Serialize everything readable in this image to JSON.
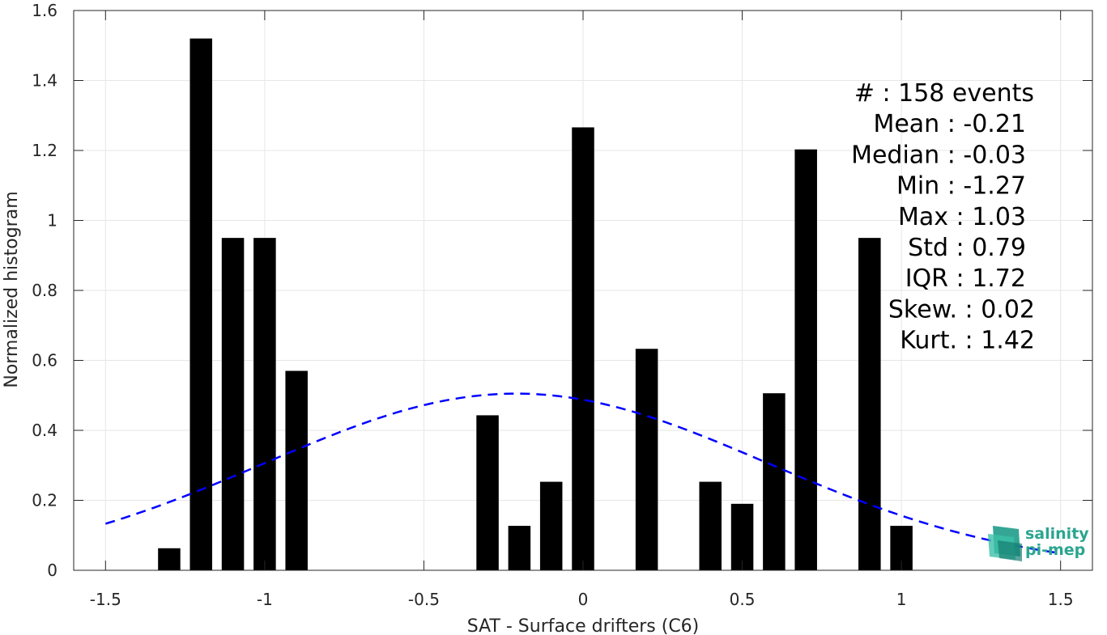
{
  "chart_data": {
    "type": "bar",
    "xlabel": "SAT - Surface drifters (C6)",
    "ylabel": "Normalized histogram",
    "xlim": [
      -1.6,
      1.6
    ],
    "ylim": [
      0,
      1.6
    ],
    "xticks": [
      -1.5,
      -1,
      -0.5,
      0,
      0.5,
      1,
      1.5
    ],
    "xtick_labels": [
      "-1.5",
      "-1",
      "-0.5",
      "0",
      "0.5",
      "1",
      "1.5"
    ],
    "yticks": [
      0,
      0.2,
      0.4,
      0.6,
      0.8,
      1,
      1.2,
      1.4,
      1.6
    ],
    "ytick_labels": [
      "0",
      "0.2",
      "0.4",
      "0.6",
      "0.8",
      "1",
      "1.2",
      "1.4",
      "1.6"
    ],
    "grid": true,
    "bar_color": "#000000",
    "bar_width": 0.07,
    "bars": [
      {
        "x": -1.3,
        "y": 0.063
      },
      {
        "x": -1.2,
        "y": 1.52
      },
      {
        "x": -1.1,
        "y": 0.95
      },
      {
        "x": -1.0,
        "y": 0.95
      },
      {
        "x": -0.9,
        "y": 0.57
      },
      {
        "x": -0.3,
        "y": 0.443
      },
      {
        "x": -0.2,
        "y": 0.127
      },
      {
        "x": -0.1,
        "y": 0.253
      },
      {
        "x": 0.0,
        "y": 1.266
      },
      {
        "x": 0.2,
        "y": 0.633
      },
      {
        "x": 0.4,
        "y": 0.253
      },
      {
        "x": 0.5,
        "y": 0.19
      },
      {
        "x": 0.6,
        "y": 0.506
      },
      {
        "x": 0.7,
        "y": 1.203
      },
      {
        "x": 0.9,
        "y": 0.95
      },
      {
        "x": 1.0,
        "y": 0.127
      }
    ],
    "fit_curve": {
      "style": "dashed",
      "color": "#0000ff",
      "mean": -0.21,
      "std": 0.79,
      "x_range": [
        -1.5,
        1.5
      ]
    },
    "stats": [
      {
        "label": "#  : 158 events",
        "align": "end",
        "x": 1.4
      },
      {
        "label": "Mean : -0.21",
        "align": "end",
        "x": 1.4
      },
      {
        "label": "Median : -0.03",
        "align": "end",
        "x": 1.4
      },
      {
        "label": "Min : -1.27",
        "align": "end",
        "x": 1.4
      },
      {
        "label": "Max : 1.03",
        "align": "end",
        "x": 1.4
      },
      {
        "label": "Std : 0.79",
        "align": "end",
        "x": 1.4
      },
      {
        "label": "IQR : 1.72",
        "align": "end",
        "x": 1.4
      },
      {
        "label": "Skew. : 0.02",
        "align": "end",
        "x": 1.4
      },
      {
        "label": "Kurt. : 1.42",
        "align": "end",
        "x": 1.4
      }
    ]
  },
  "logo": {
    "line1": "salinity",
    "line2": "pi-mep",
    "color": "#2aa590"
  }
}
